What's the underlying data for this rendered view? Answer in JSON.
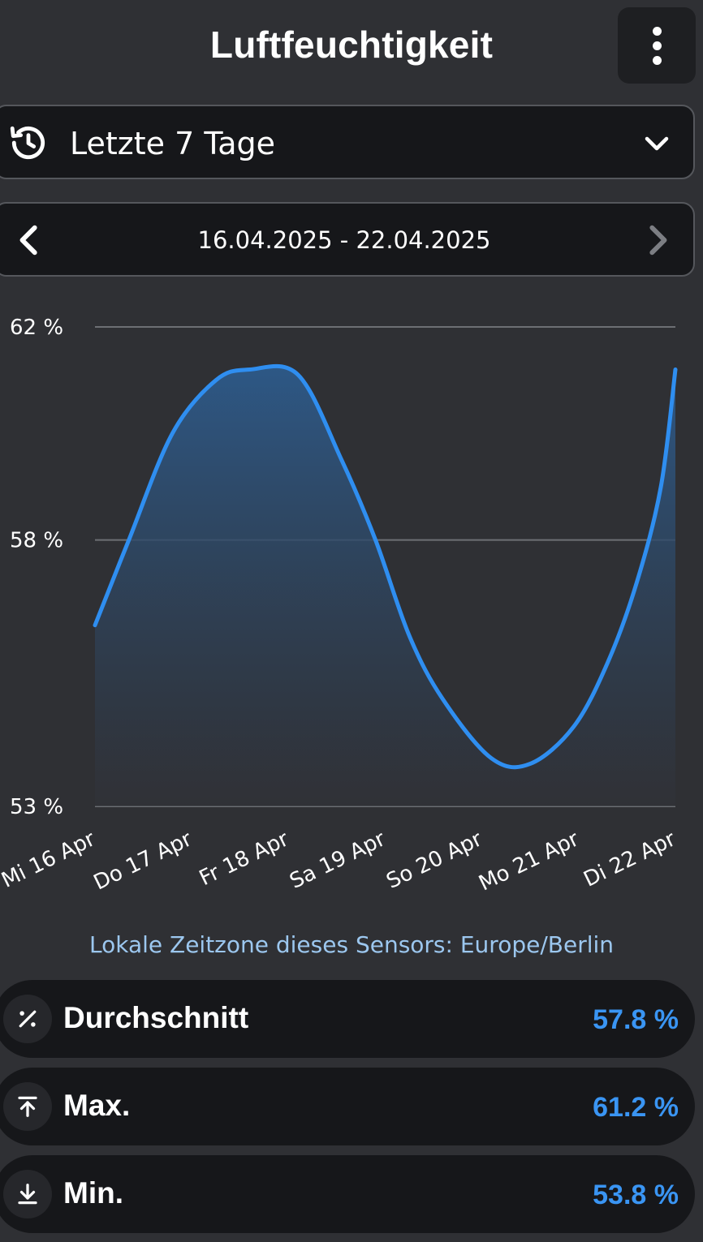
{
  "header": {
    "title": "Luftfeuchtigkeit",
    "menu_icon": "more-vertical-icon"
  },
  "range_select": {
    "label": "Letzte 7 Tage",
    "icon": "history-icon"
  },
  "date_nav": {
    "range": "16.04.2025 - 22.04.2025"
  },
  "chart_data": {
    "type": "area",
    "title": "",
    "xlabel": "",
    "ylabel": "",
    "ylim": [
      53,
      62
    ],
    "y_ticks": [
      53,
      58,
      62
    ],
    "y_tick_labels": [
      "53 %",
      "58 %",
      "62 %"
    ],
    "categories": [
      "Mi 16 Apr",
      "Do 17 Apr",
      "Fr 18 Apr",
      "Sa 19 Apr",
      "So 20 Apr",
      "Mo 21 Apr",
      "Di 22 Apr"
    ],
    "x": [
      0,
      0.35,
      0.8,
      1.25,
      1.6,
      2.1,
      2.55,
      2.9,
      3.25,
      3.6,
      4.1,
      4.5,
      4.95,
      5.3,
      5.6,
      5.85,
      6.0
    ],
    "values": [
      56.4,
      58.0,
      60.0,
      61.0,
      61.2,
      61.1,
      59.5,
      58.0,
      56.2,
      55.0,
      53.9,
      53.8,
      54.5,
      55.7,
      57.2,
      59.0,
      61.2
    ],
    "grid": true,
    "colors": {
      "line": "#2f8ef0",
      "fill_top": "#2d5a8a",
      "fill_bottom": "#303238"
    }
  },
  "timezone_note": "Lokale Zeitzone dieses Sensors: Europe/Berlin",
  "stats": [
    {
      "label": "Durchschnitt",
      "value": "57.8 %",
      "icon": "percent-icon"
    },
    {
      "label": "Max.",
      "value": "61.2 %",
      "icon": "arrow-up-to-line-icon"
    },
    {
      "label": "Min.",
      "value": "53.8 %",
      "icon": "arrow-down-to-line-icon"
    }
  ]
}
